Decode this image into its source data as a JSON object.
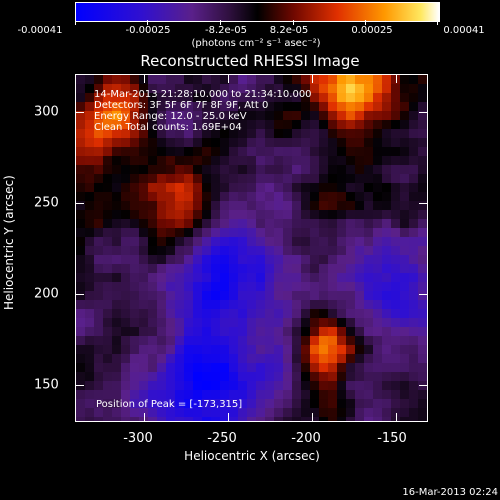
{
  "colorbar": {
    "labels": [
      "-0.00041",
      "-0.00025",
      "-8.2e-05",
      "8.2e-05",
      "0.00025",
      "0.00041"
    ],
    "units": "(photons cm⁻² s⁻¹ asec⁻²)",
    "colors": [
      "#0000ff",
      "#4010c0",
      "#602080",
      "#000000",
      "#a01000",
      "#e04000",
      "#ff9000",
      "#ffe040",
      "#ffffff"
    ]
  },
  "title": "Reconstructed RHESSI Image",
  "info": {
    "time_range": "14-Mar-2013 21:28:10.000 to 21:34:10.000",
    "detectors": "Detectors: 3F 5F 6F 7F 8F 9F, Att 0",
    "energy": "Energy Range: 12.0 - 25.0 keV",
    "clean": "Clean    Total counts: 1.69E+04"
  },
  "peak": "Position of Peak = [-173,315]",
  "axes": {
    "xlabel": "Heliocentric X (arcsec)",
    "ylabel": "Heliocentric Y (arcsec)",
    "xticks": [
      "-300",
      "-250",
      "-200",
      "-150"
    ],
    "yticks": [
      "300",
      "250",
      "200",
      "150"
    ]
  },
  "date": "16-Mar-2013 02:24"
}
